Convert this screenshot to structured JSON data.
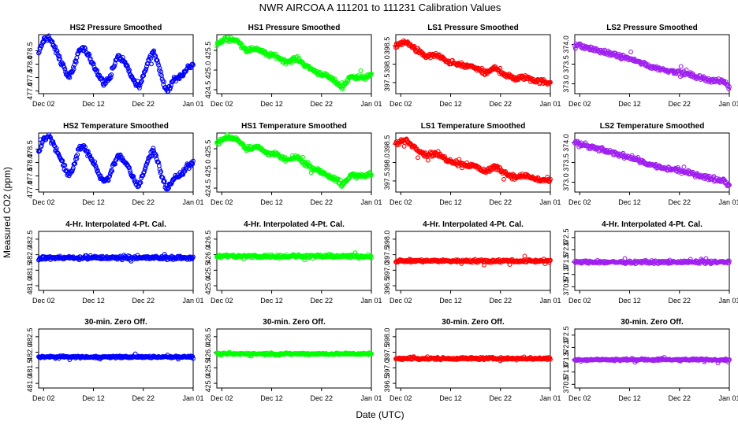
{
  "figure": {
    "title": "NWR   AIRCOA A   111201 to 111231   Calibration Values",
    "xlabel": "Date (UTC)",
    "ylabel": "Measured CO2 (ppm)",
    "x_ticks": [
      "Dec 02",
      "Dec 12",
      "Dec 22",
      "Jan 01"
    ]
  },
  "chart_data": [
    {
      "type": "scatter",
      "row": 0,
      "col": 0,
      "title": "HS2 Pressure Smoothed",
      "color": "#0000ff",
      "ylim": [
        476.9,
        479.1
      ],
      "yticks": [
        "477.0",
        "477.5",
        "478.0",
        "478.5"
      ],
      "xrange": [
        0,
        31
      ],
      "xticks": [
        1,
        11,
        21,
        31
      ],
      "shape": [
        [
          0,
          478.4
        ],
        [
          1,
          478.9
        ],
        [
          2,
          479.0
        ],
        [
          3,
          478.7
        ],
        [
          4,
          478.3
        ],
        [
          5,
          477.9
        ],
        [
          6,
          477.5
        ],
        [
          7,
          477.8
        ],
        [
          8,
          478.5
        ],
        [
          9,
          478.6
        ],
        [
          10,
          478.3
        ],
        [
          11,
          478.0
        ],
        [
          12,
          477.6
        ],
        [
          13,
          477.3
        ],
        [
          14,
          477.4
        ],
        [
          15,
          477.9
        ],
        [
          16,
          478.3
        ],
        [
          17,
          478.1
        ],
        [
          18,
          477.8
        ],
        [
          19,
          477.4
        ],
        [
          20,
          477.1
        ],
        [
          21,
          477.6
        ],
        [
          22,
          478.1
        ],
        [
          23,
          478.5
        ],
        [
          24,
          478.0
        ],
        [
          25,
          477.3
        ],
        [
          26,
          477.0
        ],
        [
          27,
          477.4
        ],
        [
          28,
          477.5
        ],
        [
          29,
          477.6
        ],
        [
          30,
          477.9
        ],
        [
          31,
          478.0
        ]
      ],
      "spread": 0.15
    },
    {
      "type": "scatter",
      "row": 0,
      "col": 1,
      "title": "HS1 Pressure Smoothed",
      "color": "#00ff00",
      "ylim": [
        424.4,
        425.9
      ],
      "yticks": [
        "424.5",
        "425.0",
        "425.5"
      ],
      "xrange": [
        0,
        31
      ],
      "xticks": [
        1,
        11,
        21,
        31
      ],
      "shape": [
        [
          0,
          425.65
        ],
        [
          2,
          425.8
        ],
        [
          4,
          425.75
        ],
        [
          6,
          425.5
        ],
        [
          8,
          425.55
        ],
        [
          10,
          425.4
        ],
        [
          12,
          425.35
        ],
        [
          14,
          425.2
        ],
        [
          16,
          425.3
        ],
        [
          18,
          425.1
        ],
        [
          20,
          424.95
        ],
        [
          22,
          424.85
        ],
        [
          24,
          424.7
        ],
        [
          25,
          424.55
        ],
        [
          27,
          424.85
        ],
        [
          29,
          424.8
        ],
        [
          31,
          424.85
        ]
      ],
      "spread": 0.08
    },
    {
      "type": "scatter",
      "row": 0,
      "col": 2,
      "title": "LS1 Pressure Smoothed",
      "color": "#ff0000",
      "ylim": [
        397.2,
        398.8
      ],
      "yticks": [
        "397.5",
        "398.0",
        "398.5"
      ],
      "xrange": [
        0,
        31
      ],
      "xticks": [
        1,
        11,
        21,
        31
      ],
      "shape": [
        [
          0,
          398.5
        ],
        [
          2,
          398.6
        ],
        [
          4,
          398.4
        ],
        [
          6,
          398.2
        ],
        [
          8,
          398.25
        ],
        [
          10,
          398.1
        ],
        [
          12,
          398.0
        ],
        [
          14,
          397.95
        ],
        [
          16,
          397.9
        ],
        [
          18,
          397.75
        ],
        [
          20,
          397.9
        ],
        [
          22,
          397.7
        ],
        [
          24,
          397.6
        ],
        [
          26,
          397.65
        ],
        [
          28,
          397.55
        ],
        [
          31,
          397.5
        ]
      ],
      "spread": 0.1
    },
    {
      "type": "scatter",
      "row": 0,
      "col": 3,
      "title": "LS2 Pressure Smoothed",
      "color": "#a020f0",
      "ylim": [
        372.75,
        374.25
      ],
      "yticks": [
        "373.0",
        "373.5",
        "374.0"
      ],
      "xrange": [
        0,
        31
      ],
      "xticks": [
        1,
        11,
        21,
        31
      ],
      "shape": [
        [
          0,
          374.0
        ],
        [
          3,
          373.9
        ],
        [
          6,
          373.8
        ],
        [
          9,
          373.7
        ],
        [
          12,
          373.6
        ],
        [
          15,
          373.45
        ],
        [
          18,
          373.35
        ],
        [
          21,
          373.3
        ],
        [
          24,
          373.2
        ],
        [
          27,
          373.1
        ],
        [
          30,
          373.05
        ],
        [
          31,
          372.9
        ]
      ],
      "spread": 0.08
    },
    {
      "type": "scatter",
      "row": 1,
      "col": 0,
      "title": "HS2 Temperature Smoothed",
      "color": "#0000ff",
      "ylim": [
        476.9,
        479.1
      ],
      "yticks": [
        "477.0",
        "477.5",
        "478.0",
        "478.5"
      ],
      "xrange": [
        0,
        31
      ],
      "xticks": [
        1,
        11,
        21,
        31
      ],
      "shape": [
        [
          0,
          478.4
        ],
        [
          1,
          478.9
        ],
        [
          2,
          479.0
        ],
        [
          3,
          478.7
        ],
        [
          4,
          478.3
        ],
        [
          5,
          477.9
        ],
        [
          6,
          477.5
        ],
        [
          7,
          477.8
        ],
        [
          8,
          478.5
        ],
        [
          9,
          478.6
        ],
        [
          10,
          478.3
        ],
        [
          11,
          478.0
        ],
        [
          12,
          477.6
        ],
        [
          13,
          477.3
        ],
        [
          14,
          477.4
        ],
        [
          15,
          477.9
        ],
        [
          16,
          478.3
        ],
        [
          17,
          478.1
        ],
        [
          18,
          477.8
        ],
        [
          19,
          477.4
        ],
        [
          20,
          477.1
        ],
        [
          21,
          477.6
        ],
        [
          22,
          478.1
        ],
        [
          23,
          478.5
        ],
        [
          24,
          478.0
        ],
        [
          25,
          477.3
        ],
        [
          26,
          477.0
        ],
        [
          27,
          477.4
        ],
        [
          28,
          477.5
        ],
        [
          29,
          477.6
        ],
        [
          30,
          477.9
        ],
        [
          31,
          478.0
        ]
      ],
      "spread": 0.15
    },
    {
      "type": "scatter",
      "row": 1,
      "col": 1,
      "title": "HS1 Temperature Smoothed",
      "color": "#00ff00",
      "ylim": [
        424.4,
        425.9
      ],
      "yticks": [
        "424.5",
        "425.0",
        "425.5"
      ],
      "xrange": [
        0,
        31
      ],
      "xticks": [
        1,
        11,
        21,
        31
      ],
      "shape": [
        [
          0,
          425.65
        ],
        [
          2,
          425.8
        ],
        [
          4,
          425.75
        ],
        [
          6,
          425.5
        ],
        [
          8,
          425.55
        ],
        [
          10,
          425.4
        ],
        [
          12,
          425.35
        ],
        [
          14,
          425.2
        ],
        [
          16,
          425.3
        ],
        [
          18,
          425.1
        ],
        [
          20,
          424.95
        ],
        [
          22,
          424.85
        ],
        [
          24,
          424.7
        ],
        [
          25,
          424.55
        ],
        [
          27,
          424.85
        ],
        [
          29,
          424.8
        ],
        [
          31,
          424.85
        ]
      ],
      "spread": 0.08
    },
    {
      "type": "scatter",
      "row": 1,
      "col": 2,
      "title": "LS1 Temperature Smoothed",
      "color": "#ff0000",
      "ylim": [
        397.2,
        398.8
      ],
      "yticks": [
        "397.5",
        "398.0",
        "398.5"
      ],
      "xrange": [
        0,
        31
      ],
      "xticks": [
        1,
        11,
        21,
        31
      ],
      "shape": [
        [
          0,
          398.5
        ],
        [
          2,
          398.6
        ],
        [
          4,
          398.4
        ],
        [
          6,
          398.2
        ],
        [
          8,
          398.25
        ],
        [
          10,
          398.1
        ],
        [
          12,
          398.0
        ],
        [
          14,
          397.95
        ],
        [
          16,
          397.9
        ],
        [
          18,
          397.75
        ],
        [
          20,
          397.9
        ],
        [
          22,
          397.7
        ],
        [
          24,
          397.6
        ],
        [
          26,
          397.65
        ],
        [
          28,
          397.55
        ],
        [
          31,
          397.5
        ]
      ],
      "spread": 0.1
    },
    {
      "type": "scatter",
      "row": 1,
      "col": 3,
      "title": "LS2 Temperature Smoothed",
      "color": "#a020f0",
      "ylim": [
        372.75,
        374.25
      ],
      "yticks": [
        "373.0",
        "373.5",
        "374.0"
      ],
      "xrange": [
        0,
        31
      ],
      "xticks": [
        1,
        11,
        21,
        31
      ],
      "shape": [
        [
          0,
          374.0
        ],
        [
          3,
          373.9
        ],
        [
          6,
          373.8
        ],
        [
          9,
          373.7
        ],
        [
          12,
          373.6
        ],
        [
          15,
          373.45
        ],
        [
          18,
          373.35
        ],
        [
          21,
          373.3
        ],
        [
          24,
          373.2
        ],
        [
          27,
          373.1
        ],
        [
          30,
          373.05
        ],
        [
          31,
          372.9
        ]
      ],
      "spread": 0.08
    },
    {
      "type": "scatter",
      "row": 2,
      "col": 0,
      "title": "4-Hr. Interpolated 4-Pt. Cal.",
      "color": "#0000ff",
      "ylim": [
        480.85,
        482.75
      ],
      "yticks": [
        "481.0",
        "481.5",
        "482.0",
        "482.5"
      ],
      "xrange": [
        0,
        31
      ],
      "xticks": [
        1,
        11,
        21,
        31
      ],
      "shape": [
        [
          0,
          481.9
        ],
        [
          31,
          481.9
        ]
      ],
      "spread": 0.09
    },
    {
      "type": "scatter",
      "row": 2,
      "col": 1,
      "title": "4-Hr. Interpolated 4-Pt. Cal.",
      "color": "#00ff00",
      "ylim": [
        424.85,
        426.75
      ],
      "yticks": [
        "425.0",
        "425.5",
        "426.0",
        "426.5"
      ],
      "xrange": [
        0,
        31
      ],
      "xticks": [
        1,
        11,
        21,
        31
      ],
      "shape": [
        [
          0,
          425.95
        ],
        [
          31,
          425.95
        ]
      ],
      "spread": 0.08
    },
    {
      "type": "scatter",
      "row": 2,
      "col": 2,
      "title": "4-Hr. Interpolated 4-Pt. Cal.",
      "color": "#ff0000",
      "ylim": [
        396.35,
        398.25
      ],
      "yticks": [
        "396.5",
        "397.0",
        "397.5",
        "398.0"
      ],
      "xrange": [
        0,
        31
      ],
      "xticks": [
        1,
        11,
        21,
        31
      ],
      "shape": [
        [
          0,
          397.3
        ],
        [
          31,
          397.3
        ]
      ],
      "spread": 0.07
    },
    {
      "type": "scatter",
      "row": 2,
      "col": 3,
      "title": "4-Hr. Interpolated 4-Pt. Cal.",
      "color": "#a020f0",
      "ylim": [
        370.35,
        372.75
      ],
      "yticks": [
        "370.5",
        "371.0",
        "371.5",
        "372.0",
        "372.5"
      ],
      "xrange": [
        0,
        31
      ],
      "xticks": [
        1,
        11,
        21,
        31
      ],
      "shape": [
        [
          0,
          371.5
        ],
        [
          31,
          371.5
        ]
      ],
      "spread": 0.08
    },
    {
      "type": "scatter",
      "row": 3,
      "col": 0,
      "title": "30-min. Zero Off.",
      "color": "#0000ff",
      "ylim": [
        480.85,
        482.75
      ],
      "yticks": [
        "481.0",
        "481.5",
        "482.0",
        "482.5"
      ],
      "xrange": [
        0,
        31
      ],
      "xticks": [
        1,
        11,
        21,
        31
      ],
      "shape": [
        [
          0,
          481.85
        ],
        [
          31,
          481.85
        ]
      ],
      "spread": 0.05
    },
    {
      "type": "scatter",
      "row": 3,
      "col": 1,
      "title": "30-min. Zero Off.",
      "color": "#00ff00",
      "ylim": [
        424.85,
        426.75
      ],
      "yticks": [
        "425.0",
        "425.5",
        "426.0",
        "426.5"
      ],
      "xrange": [
        0,
        31
      ],
      "xticks": [
        1,
        11,
        21,
        31
      ],
      "shape": [
        [
          0,
          425.95
        ],
        [
          31,
          425.95
        ]
      ],
      "spread": 0.05
    },
    {
      "type": "scatter",
      "row": 3,
      "col": 2,
      "title": "30-min. Zero Off.",
      "color": "#ff0000",
      "ylim": [
        396.35,
        398.25
      ],
      "yticks": [
        "396.5",
        "397.0",
        "397.5",
        "398.0"
      ],
      "xrange": [
        0,
        31
      ],
      "xticks": [
        1,
        11,
        21,
        31
      ],
      "shape": [
        [
          0,
          397.3
        ],
        [
          31,
          397.3
        ]
      ],
      "spread": 0.06
    },
    {
      "type": "scatter",
      "row": 3,
      "col": 3,
      "title": "30-min. Zero Off.",
      "color": "#a020f0",
      "ylim": [
        370.35,
        372.75
      ],
      "yticks": [
        "370.5",
        "371.0",
        "371.5",
        "372.0",
        "372.5"
      ],
      "xrange": [
        0,
        31
      ],
      "xticks": [
        1,
        11,
        21,
        31
      ],
      "shape": [
        [
          0,
          371.5
        ],
        [
          31,
          371.5
        ]
      ],
      "spread": 0.06
    }
  ]
}
